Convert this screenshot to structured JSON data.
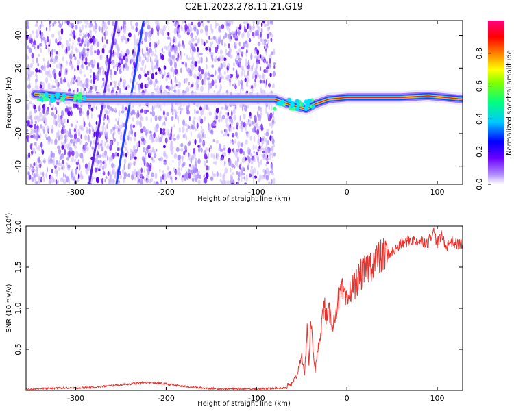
{
  "title": "C2E1.2023.278.11.21.G19",
  "chart_data": [
    {
      "type": "heatmap",
      "xlabel": "Height of straight line (km)",
      "ylabel": "Frequency (Hz)",
      "xlim": [
        -355,
        128
      ],
      "ylim": [
        -51,
        49
      ],
      "xticks": [
        -300,
        -200,
        -100,
        0,
        100
      ],
      "yticks": [
        -40,
        -20,
        0,
        20,
        40
      ],
      "colorbar": {
        "label": "Normalized spectral amplitude",
        "range": [
          0,
          1
        ],
        "ticks": [
          0.0,
          0.2,
          0.4,
          0.6,
          0.8
        ],
        "colormap": [
          "#ffffff",
          "#6a00ff",
          "#0000ff",
          "#00c8ff",
          "#00ff80",
          "#ffff00",
          "#ff8000",
          "#ff0000",
          "#ff0080"
        ]
      },
      "features": {
        "noise_region_x": [
          -355,
          -80
        ],
        "signal_track": [
          {
            "x": -345,
            "y": 4
          },
          {
            "x": -320,
            "y": 3
          },
          {
            "x": -290,
            "y": 1
          },
          {
            "x": -80,
            "y": 1
          },
          {
            "x": -60,
            "y": -3
          },
          {
            "x": -45,
            "y": -5
          },
          {
            "x": -35,
            "y": -2
          },
          {
            "x": -20,
            "y": 1
          },
          {
            "x": 0,
            "y": 2
          },
          {
            "x": 60,
            "y": 2
          },
          {
            "x": 90,
            "y": 3
          },
          {
            "x": 128,
            "y": 1
          }
        ],
        "streaks": [
          {
            "x1": -285,
            "y1": -51,
            "x2": -255,
            "y2": 49
          },
          {
            "x1": -255,
            "y1": -51,
            "x2": -225,
            "y2": 49
          }
        ]
      }
    },
    {
      "type": "line",
      "xlabel": "Height of straight line (km)",
      "ylabel": "SNR (10 * v/v)",
      "y_multiplier": "(x10⁴)",
      "xlim": [
        -355,
        128
      ],
      "ylim": [
        0,
        2.0
      ],
      "xticks": [
        -300,
        -200,
        -100,
        0,
        100
      ],
      "yticks": [
        0.5,
        1.0,
        1.5,
        2.0
      ],
      "series": [
        {
          "color": "#e8322d",
          "x": [
            -355,
            -340,
            -320,
            -300,
            -280,
            -260,
            -240,
            -220,
            -200,
            -180,
            -160,
            -140,
            -120,
            -100,
            -90,
            -80,
            -70,
            -60,
            -55,
            -50,
            -47,
            -44,
            -42,
            -40,
            -38,
            -35,
            -30,
            -25,
            -22,
            -20,
            -15,
            -10,
            -5,
            0,
            5,
            10,
            15,
            20,
            25,
            30,
            35,
            40,
            50,
            60,
            70,
            80,
            90,
            95,
            100,
            105,
            110,
            115,
            120,
            128
          ],
          "y": [
            0.02,
            0.02,
            0.03,
            0.03,
            0.04,
            0.06,
            0.08,
            0.1,
            0.08,
            0.05,
            0.03,
            0.02,
            0.02,
            0.02,
            0.02,
            0.03,
            0.03,
            0.08,
            0.2,
            0.45,
            0.15,
            0.8,
            0.3,
            0.9,
            0.55,
            0.25,
            0.65,
            1.05,
            0.85,
            0.95,
            0.8,
            1.1,
            1.2,
            1.05,
            1.25,
            1.3,
            1.4,
            1.45,
            1.52,
            1.58,
            1.6,
            1.64,
            1.68,
            1.78,
            1.83,
            1.82,
            1.8,
            1.95,
            1.8,
            1.88,
            1.75,
            1.82,
            1.78,
            1.78
          ]
        }
      ]
    }
  ]
}
